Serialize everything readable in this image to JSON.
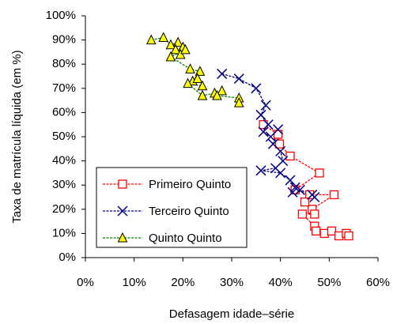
{
  "chart_data": {
    "type": "scatter",
    "x_label": "Defasagem idade–série",
    "y_label": "Taxa de matrícula líquida (em %)",
    "xlim": [
      0,
      60
    ],
    "ylim": [
      0,
      100
    ],
    "xticks": [
      {
        "value": 0,
        "label": "0%"
      },
      {
        "value": 10,
        "label": "10%"
      },
      {
        "value": 20,
        "label": "20%"
      },
      {
        "value": 30,
        "label": "30%"
      },
      {
        "value": 40,
        "label": "40%"
      },
      {
        "value": 50,
        "label": "50%"
      },
      {
        "value": 60,
        "label": "60%"
      }
    ],
    "yticks": [
      {
        "value": 0,
        "label": "0%"
      },
      {
        "value": 10,
        "label": "10%"
      },
      {
        "value": 20,
        "label": "20%"
      },
      {
        "value": 30,
        "label": "30%"
      },
      {
        "value": 40,
        "label": "40%"
      },
      {
        "value": 50,
        "label": "50%"
      },
      {
        "value": 60,
        "label": "60%"
      },
      {
        "value": 70,
        "label": "70%"
      },
      {
        "value": 80,
        "label": "80%"
      },
      {
        "value": 90,
        "label": "90%"
      },
      {
        "value": 100,
        "label": "100%"
      }
    ],
    "grid": false,
    "legend": "lower-left",
    "series": [
      {
        "name": "Primeiro Quinto",
        "color": "#ff0000",
        "marker": "square",
        "marker_fill": "#ffffff",
        "x": [
          36.5,
          39.5,
          39.8,
          42,
          48,
          43,
          46,
          51,
          46.5,
          45,
          47,
          44.5,
          47,
          47.3,
          49,
          50.5,
          52,
          53.5,
          54
        ],
        "values": [
          55,
          51,
          47,
          42,
          35,
          28,
          26,
          26,
          20,
          23,
          18,
          18,
          13,
          11,
          10,
          11,
          9,
          10,
          9
        ]
      },
      {
        "name": "Terceiro Quinto",
        "color": "#000080",
        "marker": "x",
        "marker_fill": "#000080",
        "x": [
          28,
          31.5,
          35,
          37,
          36,
          37.5,
          36.5,
          38,
          39.5,
          38.5,
          40,
          40.5,
          39,
          36,
          40,
          42,
          43,
          42.5,
          44,
          46.5,
          47
        ],
        "values": [
          76,
          74,
          70,
          63,
          59,
          55,
          52,
          50,
          53,
          47,
          44,
          40,
          37,
          36,
          35,
          32,
          29,
          27,
          28,
          26,
          25
        ]
      },
      {
        "name": "Quinto Quinto",
        "color": "#008000",
        "marker": "triangle",
        "marker_fill": "#ffff00",
        "x": [
          13.5,
          16,
          17.5,
          19,
          20,
          18.5,
          19.5,
          20.5,
          17.5,
          21.5,
          23.5,
          22,
          23,
          24,
          21,
          24,
          26.5,
          28,
          27,
          31.5,
          31.5
        ],
        "values": [
          90,
          91,
          88,
          89,
          87,
          86,
          84,
          86,
          83,
          78,
          77,
          73,
          74,
          71,
          72,
          67,
          68,
          69,
          67,
          66,
          64
        ]
      }
    ]
  }
}
